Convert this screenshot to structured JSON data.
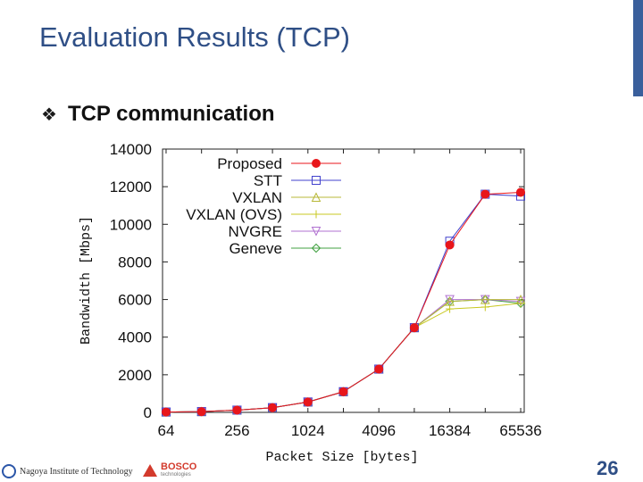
{
  "slide": {
    "title": "Evaluation Results (TCP)",
    "bullet_icon": "diamond-bullet-icon",
    "bullet_text": "TCP communication",
    "page_number": "26",
    "accent_color": "#3a5f9c"
  },
  "footer": {
    "left_logo_text": "Nagoya Institute of Technology",
    "right_logo_text": "BOSCO",
    "right_logo_sub": "technologies"
  },
  "chart_data": {
    "type": "line",
    "xlabel": "Packet Size [bytes]",
    "ylabel": "Bandwidth [Mbps]",
    "x_scale": "log2",
    "x": [
      64,
      128,
      256,
      512,
      1024,
      2048,
      4096,
      8192,
      16384,
      32768,
      65536
    ],
    "xticks": [
      64,
      256,
      1024,
      4096,
      16384,
      65536
    ],
    "xtick_labels": [
      "64",
      "256",
      "1024",
      "4096",
      "16384",
      "65536"
    ],
    "ylim": [
      0,
      14000
    ],
    "yticks": [
      0,
      2000,
      4000,
      6000,
      8000,
      10000,
      12000,
      14000
    ],
    "ytick_labels": [
      "0",
      "2000",
      "4000",
      "6000",
      "8000",
      "10000",
      "12000",
      "14000"
    ],
    "legend_position": "top-left",
    "grid": false,
    "series": [
      {
        "name": "Proposed",
        "color": "#e8161b",
        "marker": "filled-circle",
        "values": [
          20,
          40,
          120,
          250,
          550,
          1100,
          2300,
          4500,
          8900,
          11600,
          11700
        ]
      },
      {
        "name": "STT",
        "color": "#4040cc",
        "marker": "square",
        "values": [
          20,
          40,
          120,
          250,
          550,
          1100,
          2300,
          4500,
          9100,
          11600,
          11500
        ]
      },
      {
        "name": "VXLAN",
        "color": "#b8b838",
        "marker": "triangle",
        "values": [
          20,
          40,
          120,
          250,
          550,
          1100,
          2300,
          4500,
          5900,
          6000,
          6000
        ]
      },
      {
        "name": "VXLAN (OVS)",
        "color": "#c8c820",
        "marker": "plus",
        "values": [
          20,
          40,
          120,
          250,
          550,
          1100,
          2300,
          4500,
          5500,
          5600,
          5800
        ]
      },
      {
        "name": "NVGRE",
        "color": "#b070d0",
        "marker": "triangle-down",
        "values": [
          20,
          40,
          120,
          250,
          550,
          1100,
          2300,
          4500,
          6000,
          6000,
          5900
        ]
      },
      {
        "name": "Geneve",
        "color": "#40a040",
        "marker": "diamond",
        "values": [
          20,
          40,
          120,
          250,
          550,
          1100,
          2300,
          4500,
          5900,
          6000,
          5800
        ]
      }
    ]
  }
}
